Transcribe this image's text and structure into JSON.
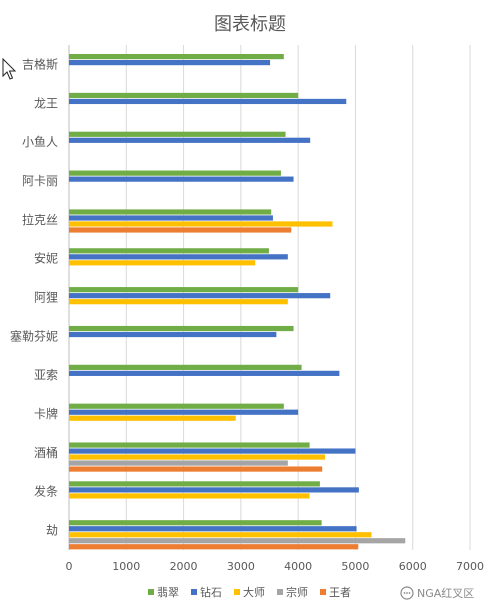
{
  "chart_data": {
    "type": "bar",
    "orientation": "horizontal",
    "title": "图表标题",
    "xlabel": "",
    "ylabel": "",
    "xlim": [
      0,
      7000
    ],
    "x_ticks": [
      0,
      1000,
      2000,
      3000,
      4000,
      5000,
      6000,
      7000
    ],
    "grid": true,
    "legend_position": "bottom",
    "categories": [
      "吉格斯",
      "龙王",
      "小鱼人",
      "阿卡丽",
      "拉克丝",
      "安妮",
      "阿狸",
      "塞勒芬妮",
      "亚索",
      "卡牌",
      "酒桶",
      "发条",
      "劫"
    ],
    "series": [
      {
        "name": "翡翠",
        "color": "#70ad47",
        "values": [
          3750,
          4000,
          3780,
          3700,
          3530,
          3490,
          4000,
          3920,
          4060,
          3750,
          4200,
          4380,
          4410
        ]
      },
      {
        "name": "钻石",
        "color": "#4472c4",
        "values": [
          3510,
          4840,
          4210,
          3920,
          3560,
          3820,
          4560,
          3620,
          4720,
          4000,
          5000,
          5060,
          5020
        ]
      },
      {
        "name": "大师",
        "color": "#ffc000",
        "values": [
          null,
          null,
          null,
          null,
          4600,
          3250,
          3820,
          null,
          null,
          2910,
          4470,
          4200,
          5280
        ]
      },
      {
        "name": "宗师",
        "color": "#a5a5a5",
        "values": [
          null,
          null,
          null,
          null,
          null,
          null,
          null,
          null,
          null,
          null,
          3820,
          null,
          5870
        ]
      },
      {
        "name": "王者",
        "color": "#ed7d31",
        "values": [
          null,
          null,
          null,
          null,
          3880,
          null,
          null,
          null,
          null,
          null,
          4420,
          null,
          5050
        ]
      }
    ]
  },
  "watermark": {
    "text": "NGA红叉区",
    "icon": "chat-bubble-icon"
  },
  "cursor_icon": "mouse-pointer-icon"
}
